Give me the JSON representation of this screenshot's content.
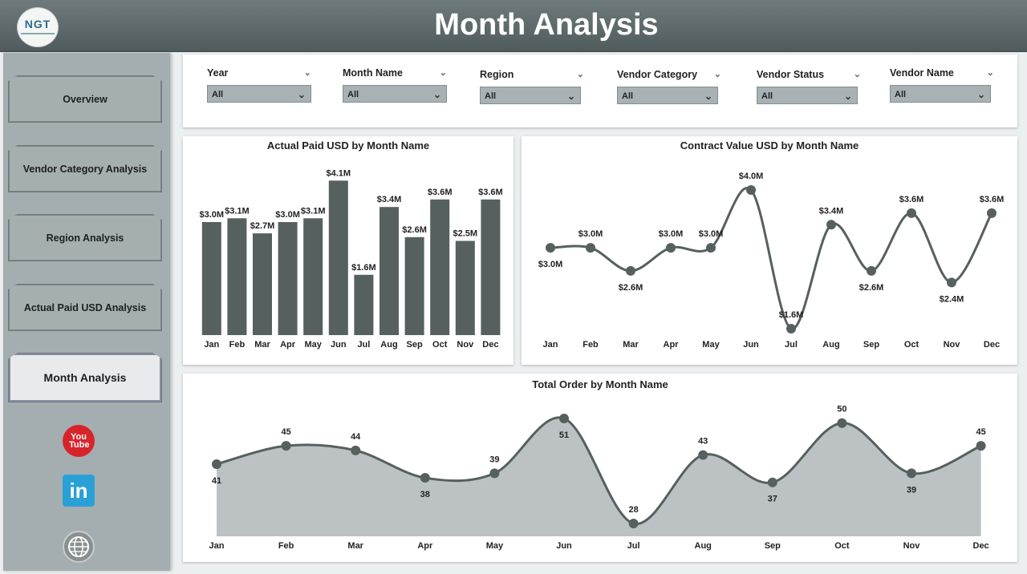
{
  "header": {
    "title": "Month Analysis",
    "logo_text": "NGT"
  },
  "nav": {
    "items": [
      {
        "label": "Overview"
      },
      {
        "label": "Vendor Category Analysis"
      },
      {
        "label": "Region Analysis"
      },
      {
        "label": "Actual Paid USD Analysis"
      },
      {
        "label": "Month Analysis"
      }
    ],
    "active_index": 4
  },
  "social": {
    "youtube": "You Tube",
    "linkedin": "in"
  },
  "filters": [
    {
      "label": "Year",
      "value": "All"
    },
    {
      "label": "Month Name",
      "value": "All"
    },
    {
      "label": "Region",
      "value": "All"
    },
    {
      "label": "Vendor Category",
      "value": "All"
    },
    {
      "label": "Vendor Status",
      "value": "All"
    },
    {
      "label": "Vendor Name",
      "value": "All"
    }
  ],
  "chart_data": [
    {
      "type": "bar",
      "title": "Actual Paid USD by Month Name",
      "categories": [
        "Jan",
        "Feb",
        "Mar",
        "Apr",
        "May",
        "Jun",
        "Jul",
        "Aug",
        "Sep",
        "Oct",
        "Nov",
        "Dec"
      ],
      "values": [
        3.0,
        3.1,
        2.7,
        3.0,
        3.1,
        4.1,
        1.6,
        3.4,
        2.6,
        3.6,
        2.5,
        3.6
      ],
      "labels": [
        "$3.0M",
        "$3.1M",
        "$2.7M",
        "$3.0M",
        "$3.1M",
        "$4.1M",
        "$1.6M",
        "$3.4M",
        "$2.6M",
        "$3.6M",
        "$2.5M",
        "$3.6M"
      ],
      "color": "#56605f"
    },
    {
      "type": "line",
      "title": "Contract Value USD by Month Name",
      "categories": [
        "Jan",
        "Feb",
        "Mar",
        "Apr",
        "May",
        "Jun",
        "Jul",
        "Aug",
        "Sep",
        "Oct",
        "Nov",
        "Dec"
      ],
      "values": [
        3.0,
        3.0,
        2.6,
        3.0,
        3.0,
        4.0,
        1.6,
        3.4,
        2.6,
        3.6,
        2.4,
        3.6
      ],
      "labels": [
        "$3.0M",
        "$3.0M",
        "$2.6M",
        "$3.0M",
        "$3.0M",
        "$4.0M",
        "$1.6M",
        "$3.4M",
        "$2.6M",
        "$3.6M",
        "$2.4M",
        "$3.6M"
      ],
      "color": "#56605f"
    },
    {
      "type": "area",
      "title": "Total Order by Month Name",
      "categories": [
        "Jan",
        "Feb",
        "Mar",
        "Apr",
        "May",
        "Jun",
        "Jul",
        "Aug",
        "Sep",
        "Oct",
        "Nov",
        "Dec"
      ],
      "values": [
        41,
        45,
        44,
        38,
        39,
        51,
        28,
        43,
        37,
        50,
        39,
        45
      ],
      "labels": [
        "41",
        "45",
        "44",
        "38",
        "39",
        "51",
        "28",
        "43",
        "37",
        "50",
        "39",
        "45"
      ],
      "color": "#56605f",
      "fill": "#bcc2c4"
    }
  ]
}
